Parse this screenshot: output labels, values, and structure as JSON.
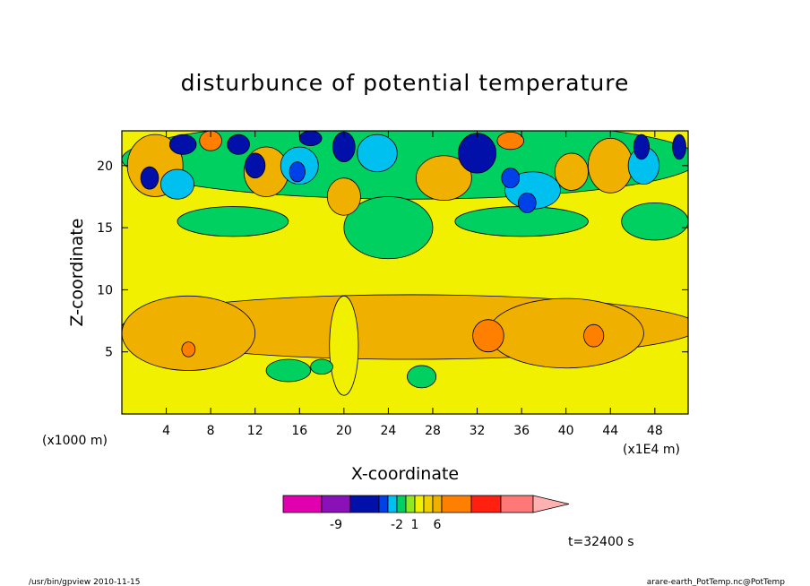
{
  "chart_data": {
    "type": "heatmap",
    "title": "disturbunce of potential temperature",
    "xlabel": "X-coordinate",
    "ylabel": "Z-coordinate",
    "x_unit_left": "(x1000 m)",
    "x_unit_right": "(x1E4 m)",
    "x_ticks": [
      4,
      8,
      12,
      16,
      20,
      24,
      28,
      32,
      36,
      40,
      44,
      48
    ],
    "y_ticks": [
      5,
      10,
      15,
      20
    ],
    "xlim": [
      0,
      51
    ],
    "ylim": [
      0,
      22.8
    ],
    "colorbar": {
      "colors": [
        "#e000b0",
        "#8a10b8",
        "#0010a8",
        "#0040e8",
        "#00c0f0",
        "#00d060",
        "#90e820",
        "#f0f000",
        "#f0d000",
        "#f0b000",
        "#ff8000",
        "#ff2010",
        "#ff7878",
        "#ffb0b0"
      ],
      "labels": [
        {
          "text": "-9",
          "index": 1.5
        },
        {
          "text": "-2",
          "index": 5
        },
        {
          "text": "1",
          "index": 7
        },
        {
          "text": "6",
          "index": 9.5
        }
      ]
    },
    "field_colors": {
      "background": "#f0f000",
      "warm1": "#f0b000",
      "warm2": "#ff8000",
      "cool1": "#00d060",
      "cool2": "#00c0f0",
      "cool3": "#0010a8",
      "cool4": "#0040e8"
    },
    "field_blobs": [
      {
        "x": 26,
        "z": 7,
        "rx": 26,
        "rz": 2.6,
        "c": "warm1"
      },
      {
        "x": 6,
        "z": 6.5,
        "rx": 6,
        "rz": 3.0,
        "c": "warm1"
      },
      {
        "x": 40,
        "z": 6.5,
        "rx": 7,
        "rz": 2.8,
        "c": "warm1"
      },
      {
        "x": 33,
        "z": 6.3,
        "rx": 1.4,
        "rz": 1.3,
        "c": "warm2"
      },
      {
        "x": 42.5,
        "z": 6.3,
        "rx": 0.9,
        "rz": 0.9,
        "c": "warm2"
      },
      {
        "x": 6,
        "z": 5.2,
        "rx": 0.6,
        "rz": 0.6,
        "c": "warm2"
      },
      {
        "x": 20,
        "z": 5.5,
        "rx": 1.3,
        "rz": 4,
        "c": "background"
      },
      {
        "x": 15,
        "z": 3.5,
        "rx": 2,
        "rz": 0.9,
        "c": "cool1"
      },
      {
        "x": 18,
        "z": 3.8,
        "rx": 1,
        "rz": 0.6,
        "c": "cool1"
      },
      {
        "x": 27,
        "z": 3.0,
        "rx": 1.3,
        "rz": 0.9,
        "c": "cool1"
      },
      {
        "x": 26,
        "z": 20.5,
        "rx": 26,
        "rz": 3.2,
        "c": "cool1"
      },
      {
        "x": 10,
        "z": 15.5,
        "rx": 5,
        "rz": 1.2,
        "c": "cool1"
      },
      {
        "x": 36,
        "z": 15.5,
        "rx": 6,
        "rz": 1.2,
        "c": "cool1"
      },
      {
        "x": 24,
        "z": 15,
        "rx": 4,
        "rz": 2.5,
        "c": "cool1"
      },
      {
        "x": 48,
        "z": 15.5,
        "rx": 3,
        "rz": 1.5,
        "c": "cool1"
      },
      {
        "x": 3,
        "z": 20,
        "rx": 2.5,
        "rz": 2.5,
        "c": "warm1"
      },
      {
        "x": 13,
        "z": 19.5,
        "rx": 2,
        "rz": 2.0,
        "c": "warm1"
      },
      {
        "x": 20,
        "z": 17.5,
        "rx": 1.5,
        "rz": 1.5,
        "c": "warm1"
      },
      {
        "x": 29,
        "z": 19,
        "rx": 2.5,
        "rz": 1.8,
        "c": "warm1"
      },
      {
        "x": 44,
        "z": 20,
        "rx": 2,
        "rz": 2.2,
        "c": "warm1"
      },
      {
        "x": 40.5,
        "z": 19.5,
        "rx": 1.5,
        "rz": 1.5,
        "c": "warm1"
      },
      {
        "x": 8,
        "z": 22,
        "rx": 1,
        "rz": 0.8,
        "c": "warm2"
      },
      {
        "x": 35,
        "z": 22,
        "rx": 1.2,
        "rz": 0.7,
        "c": "warm2"
      },
      {
        "x": 5,
        "z": 18.5,
        "rx": 1.5,
        "rz": 1.2,
        "c": "cool2"
      },
      {
        "x": 16,
        "z": 20,
        "rx": 1.7,
        "rz": 1.5,
        "c": "cool2"
      },
      {
        "x": 37,
        "z": 18,
        "rx": 2.5,
        "rz": 1.5,
        "c": "cool2"
      },
      {
        "x": 23,
        "z": 21,
        "rx": 1.8,
        "rz": 1.5,
        "c": "cool2"
      },
      {
        "x": 47,
        "z": 20,
        "rx": 1.4,
        "rz": 1.5,
        "c": "cool2"
      },
      {
        "x": 5.5,
        "z": 21.7,
        "rx": 1.2,
        "rz": 0.8,
        "c": "cool3"
      },
      {
        "x": 10.5,
        "z": 21.7,
        "rx": 1.0,
        "rz": 0.8,
        "c": "cool3"
      },
      {
        "x": 12,
        "z": 20,
        "rx": 0.9,
        "rz": 1.0,
        "c": "cool3"
      },
      {
        "x": 2.5,
        "z": 19,
        "rx": 0.8,
        "rz": 0.9,
        "c": "cool3"
      },
      {
        "x": 15.8,
        "z": 19.5,
        "rx": 0.7,
        "rz": 0.8,
        "c": "cool4"
      },
      {
        "x": 20,
        "z": 21.5,
        "rx": 1.0,
        "rz": 1.2,
        "c": "cool3"
      },
      {
        "x": 32,
        "z": 21.0,
        "rx": 1.7,
        "rz": 1.6,
        "c": "cool3"
      },
      {
        "x": 35,
        "z": 19,
        "rx": 0.8,
        "rz": 0.8,
        "c": "cool4"
      },
      {
        "x": 36.5,
        "z": 17,
        "rx": 0.8,
        "rz": 0.8,
        "c": "cool4"
      },
      {
        "x": 46.8,
        "z": 21.5,
        "rx": 0.7,
        "rz": 1.0,
        "c": "cool3"
      },
      {
        "x": 50.2,
        "z": 21.5,
        "rx": 0.6,
        "rz": 1.0,
        "c": "cool3"
      },
      {
        "x": 17,
        "z": 22.2,
        "rx": 1.0,
        "rz": 0.6,
        "c": "cool3"
      }
    ]
  },
  "footer": {
    "left": "/usr/bin/gpview  2010-11-15",
    "right": "arare-earth_PotTemp.nc@PotTemp"
  },
  "time_label": "t=32400 s"
}
